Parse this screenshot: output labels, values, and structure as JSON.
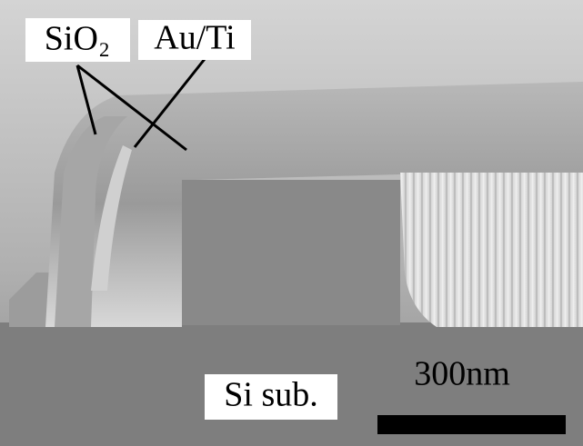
{
  "labels": {
    "oxide": "SiO₂",
    "metal": "Au/Ti",
    "substrate": "Si sub.",
    "scale_bar": "300nm"
  }
}
